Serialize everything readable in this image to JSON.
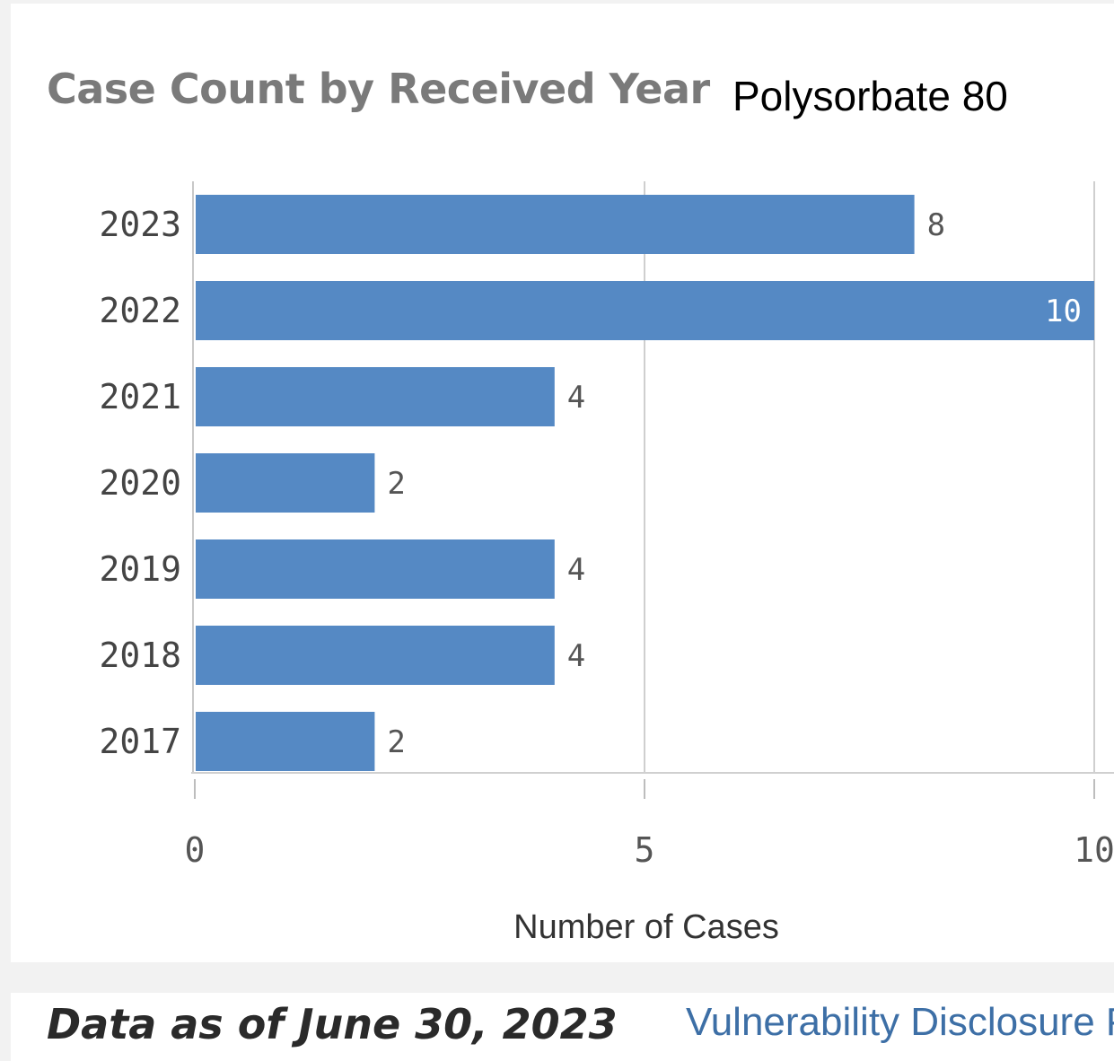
{
  "chart_data": {
    "type": "bar",
    "orientation": "horizontal",
    "title": "Case Count by Received Year",
    "annotation": "Polysorbate 80",
    "categories": [
      "2023",
      "2022",
      "2021",
      "2020",
      "2019",
      "2018",
      "2017"
    ],
    "values": [
      8,
      10,
      4,
      2,
      4,
      4,
      2
    ],
    "xlabel": "Number of Cases",
    "ylabel": "",
    "xlim": [
      0,
      10
    ],
    "x_ticks": [
      "0",
      "5",
      "10"
    ],
    "grid": true,
    "bar_color": "#5589c4"
  },
  "footer": {
    "data_date": "Data as of June 30, 2023",
    "link_label": "Vulnerability Disclosure P"
  }
}
